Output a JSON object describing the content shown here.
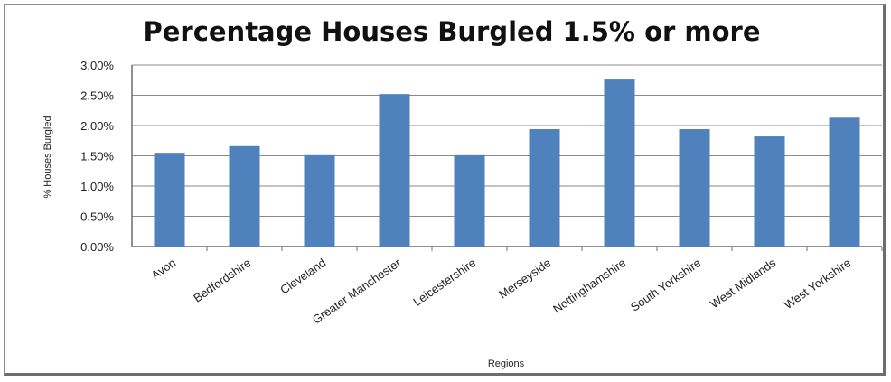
{
  "chart_data": {
    "type": "bar",
    "title": "Percentage  Houses Burgled 1.5% or more",
    "xlabel": "Regions",
    "ylabel": "% Houses Burgled",
    "categories": [
      "Avon",
      "Bedfordshire",
      "Cleveland",
      "Greater Manchester",
      "Leicestershire",
      "Merseyside",
      "Nottinghamshire",
      "South Yorkshire",
      "West Midlands",
      "West Yorkshire"
    ],
    "values": [
      1.55,
      1.66,
      1.51,
      2.52,
      1.51,
      1.94,
      2.76,
      1.94,
      1.82,
      2.13
    ],
    "ylim": [
      0,
      3.0
    ],
    "yticks": [
      "0.00%",
      "0.50%",
      "1.00%",
      "1.50%",
      "2.00%",
      "2.50%",
      "3.00%"
    ],
    "grid": true,
    "bar_color": "#4f81bd"
  }
}
